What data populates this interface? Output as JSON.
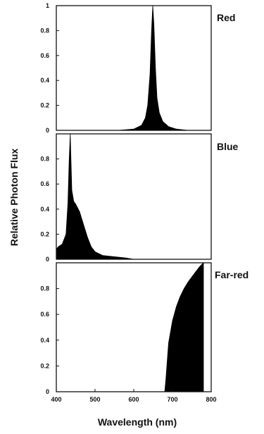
{
  "chart_data": [
    {
      "type": "area",
      "panel_label": "Red",
      "xlim": [
        400,
        800
      ],
      "ylim": [
        0,
        1
      ],
      "y_ticks": [
        "0",
        "0.2",
        "0.4",
        "0.6",
        "0.8",
        "1"
      ],
      "x_tick_labels_shown": false,
      "color": "#000000",
      "x": [
        400,
        560,
        600,
        620,
        630,
        636,
        642,
        646,
        649,
        652,
        656,
        660,
        666,
        675,
        690,
        710,
        740,
        800
      ],
      "y": [
        0,
        0,
        0.01,
        0.04,
        0.1,
        0.2,
        0.45,
        0.8,
        1.0,
        0.85,
        0.5,
        0.26,
        0.14,
        0.07,
        0.03,
        0.01,
        0,
        0
      ]
    },
    {
      "type": "area",
      "panel_label": "Blue",
      "xlim": [
        400,
        800
      ],
      "ylim": [
        0,
        1
      ],
      "y_ticks": [
        "0",
        "0.2",
        "0.4",
        "0.6",
        "0.8"
      ],
      "x_tick_labels_shown": false,
      "color": "#000000",
      "x": [
        400,
        405,
        415,
        425,
        430,
        433,
        436,
        440,
        445,
        450,
        460,
        470,
        480,
        490,
        500,
        520,
        550,
        580,
        600,
        800
      ],
      "y": [
        0.08,
        0.1,
        0.12,
        0.2,
        0.45,
        0.78,
        1.0,
        0.55,
        0.46,
        0.44,
        0.38,
        0.28,
        0.18,
        0.1,
        0.06,
        0.03,
        0.02,
        0.01,
        0,
        0
      ]
    },
    {
      "type": "area",
      "panel_label": "Far-red",
      "xlim": [
        400,
        800
      ],
      "ylim": [
        0,
        1
      ],
      "y_ticks": [
        "0",
        "0.2",
        "0.4",
        "0.6",
        "0.8"
      ],
      "x_ticks": [
        "400",
        "500",
        "600",
        "700",
        "800"
      ],
      "color": "#000000",
      "x": [
        400,
        670,
        680,
        683,
        686,
        690,
        700,
        710,
        720,
        730,
        740,
        750,
        760,
        770,
        780
      ],
      "y": [
        0,
        0,
        0,
        0.1,
        0.22,
        0.38,
        0.55,
        0.66,
        0.74,
        0.8,
        0.85,
        0.89,
        0.93,
        0.97,
        1.0
      ]
    }
  ],
  "axes": {
    "ylabel": "Relative Photon Flux",
    "xlabel": "Wavelength (nm)"
  }
}
